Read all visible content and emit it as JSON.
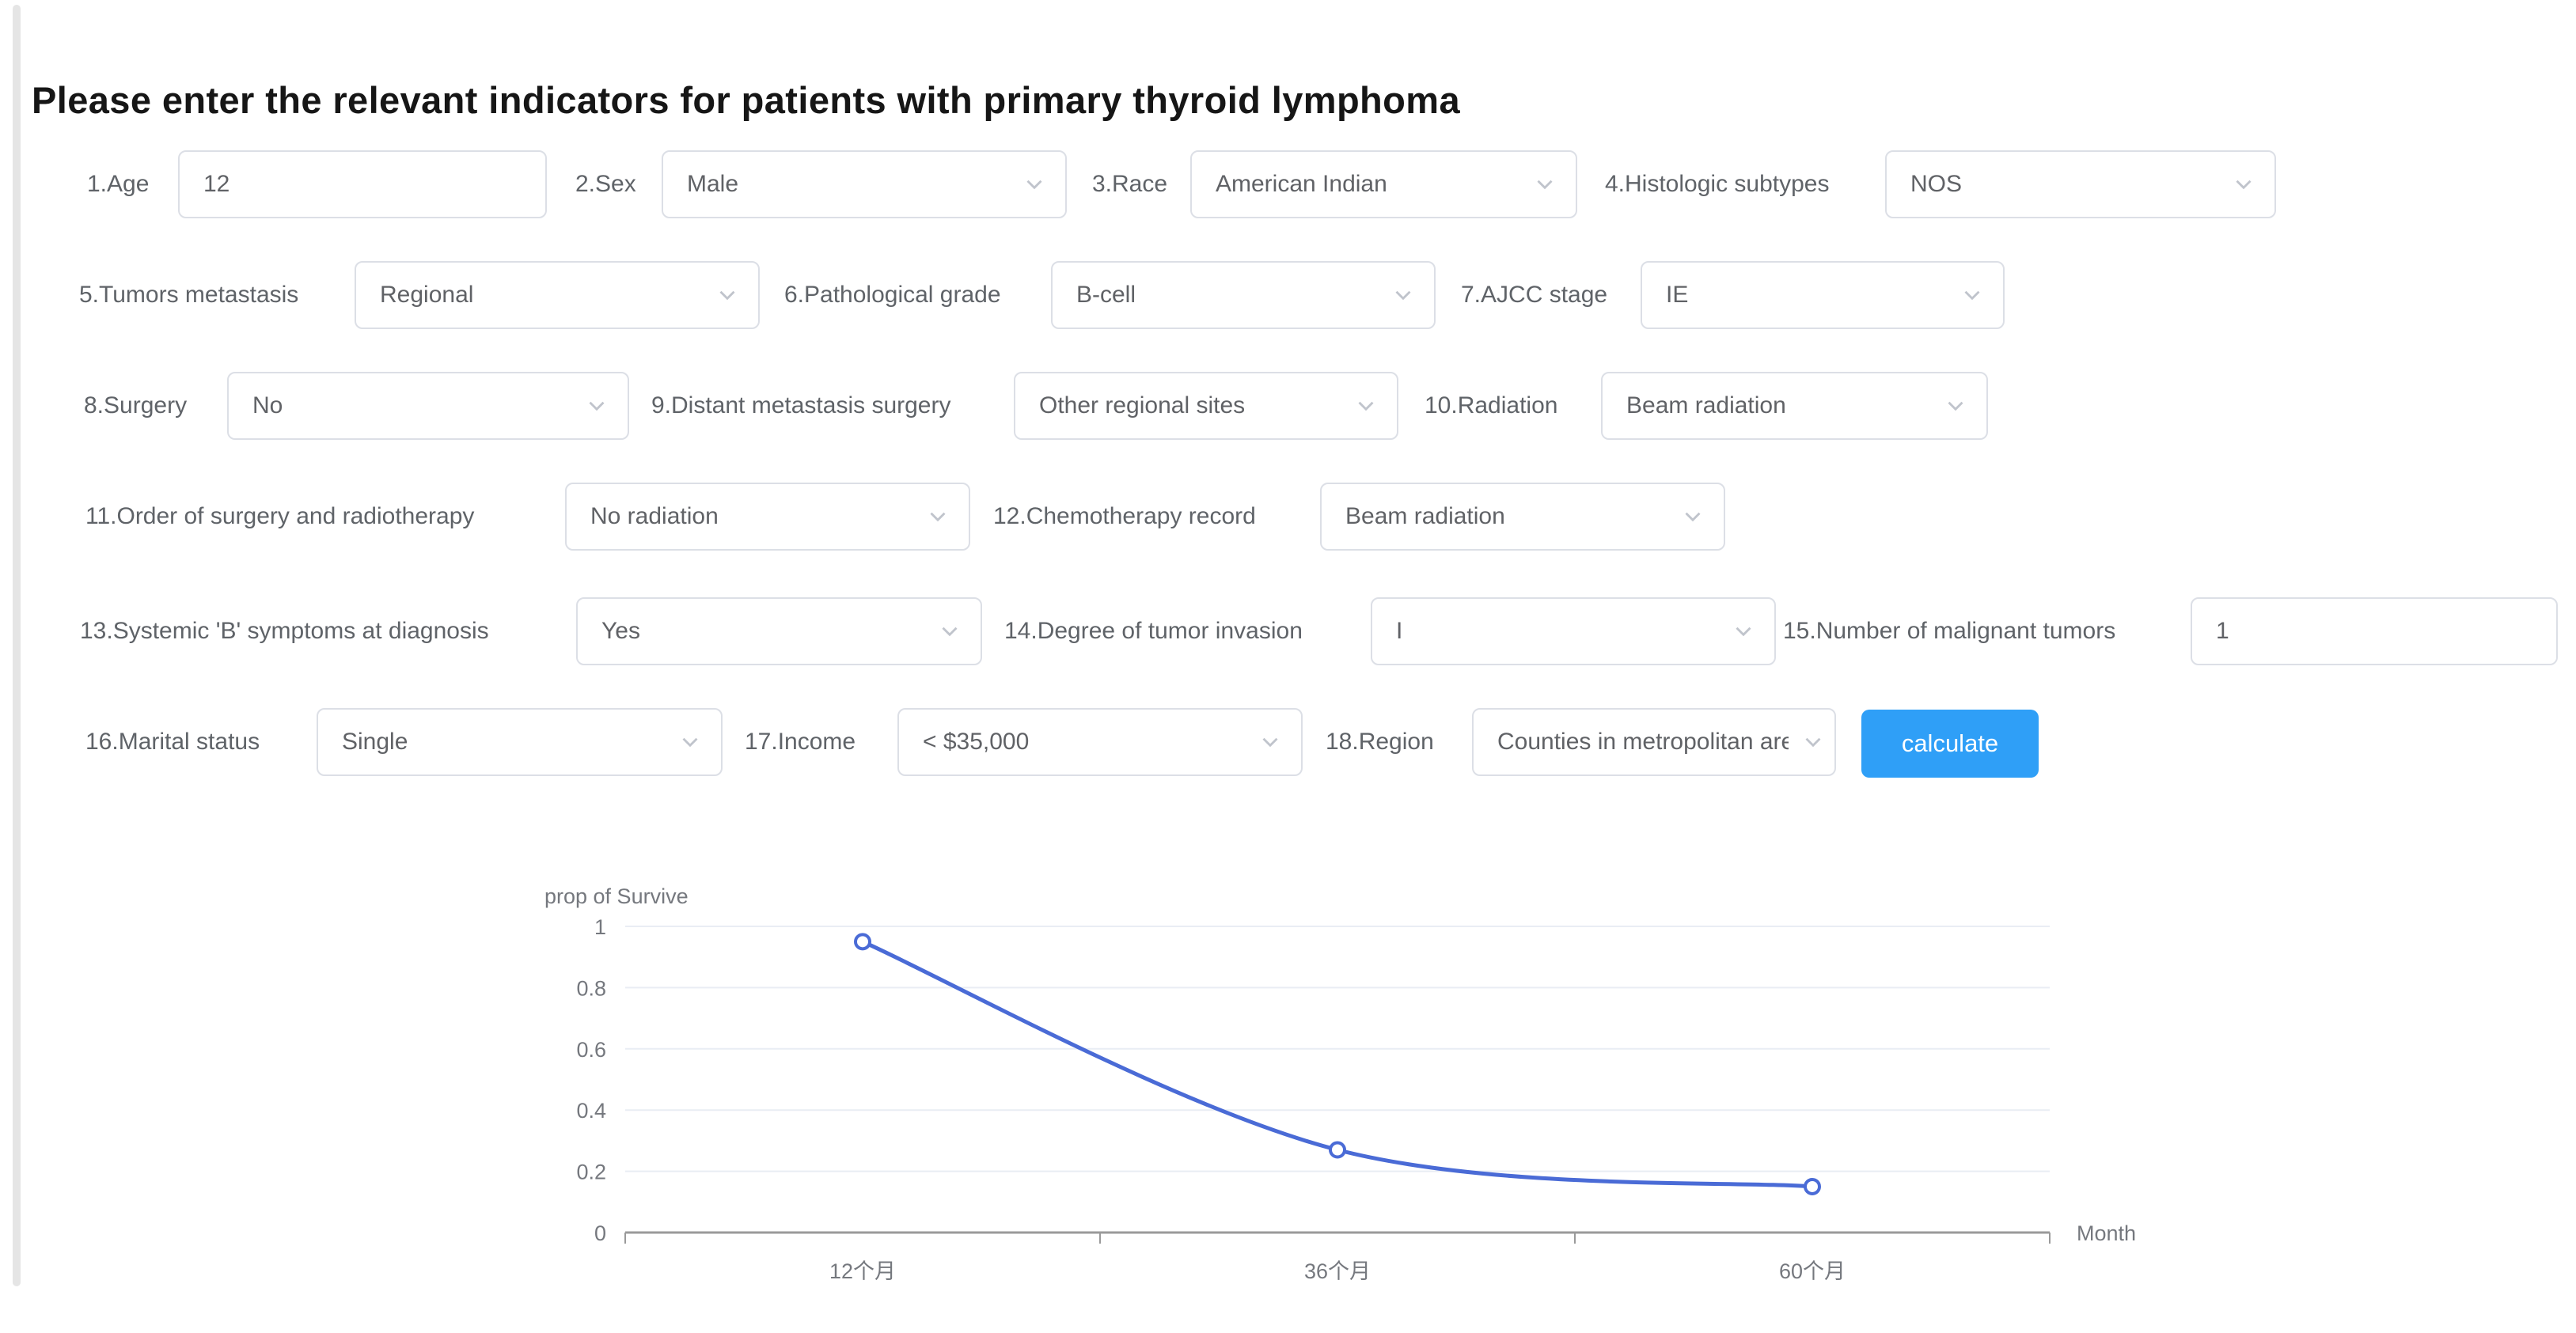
{
  "page": {
    "title": "Please enter the relevant indicators for patients with primary thyroid lymphoma"
  },
  "form": {
    "fields": [
      {
        "label": "1.Age",
        "type": "input",
        "value": "12"
      },
      {
        "label": "2.Sex",
        "type": "select",
        "value": "Male"
      },
      {
        "label": "3.Race",
        "type": "select",
        "value": "American Indian"
      },
      {
        "label": "4.Histologic subtypes",
        "type": "select",
        "value": "NOS"
      },
      {
        "label": "5.Tumors metastasis",
        "type": "select",
        "value": "Regional"
      },
      {
        "label": "6.Pathological grade",
        "type": "select",
        "value": "B-cell"
      },
      {
        "label": "7.AJCC stage",
        "type": "select",
        "value": "IE"
      },
      {
        "label": "8.Surgery",
        "type": "select",
        "value": "No"
      },
      {
        "label": "9.Distant metastasis surgery",
        "type": "select",
        "value": "Other regional sites"
      },
      {
        "label": "10.Radiation",
        "type": "select",
        "value": "Beam radiation"
      },
      {
        "label": "11.Order of surgery and radiotherapy",
        "type": "select",
        "value": "No radiation"
      },
      {
        "label": "12.Chemotherapy record",
        "type": "select",
        "value": "Beam radiation"
      },
      {
        "label": "13.Systemic 'B' symptoms at diagnosis",
        "type": "select",
        "value": "Yes"
      },
      {
        "label": "14.Degree of tumor invasion",
        "type": "select",
        "value": "I"
      },
      {
        "label": "15.Number of malignant tumors",
        "type": "input",
        "value": "1"
      },
      {
        "label": "16.Marital status",
        "type": "select",
        "value": "Single"
      },
      {
        "label": "17.Income",
        "type": "select",
        "value": "< $35,000"
      },
      {
        "label": "18.Region",
        "type": "select",
        "value": "Counties in metropolitan are"
      }
    ],
    "calculate_label": "calculate"
  },
  "colors": {
    "accent": "#2f9ff7",
    "input_border": "#dcdfe6",
    "label_text": "#5f6368",
    "value_text": "#606266",
    "chart_axis_text": "#75787e",
    "gridline": "#e9edf4",
    "chart_line": "#4a6bd6"
  },
  "chart_data": {
    "type": "line",
    "categories": [
      "12个月",
      "36个月",
      "60个月"
    ],
    "values": [
      0.95,
      0.27,
      0.15
    ],
    "title": "",
    "ylabel": "prop of Survive",
    "xlabel": "Month",
    "ylim": [
      0,
      1
    ],
    "yticks": [
      0,
      0.2,
      0.4,
      0.6,
      0.8,
      1
    ],
    "grid": true,
    "legend": "none",
    "smooth": true,
    "point_style": "hollow-circle",
    "line_color": "#4a6bd6"
  }
}
